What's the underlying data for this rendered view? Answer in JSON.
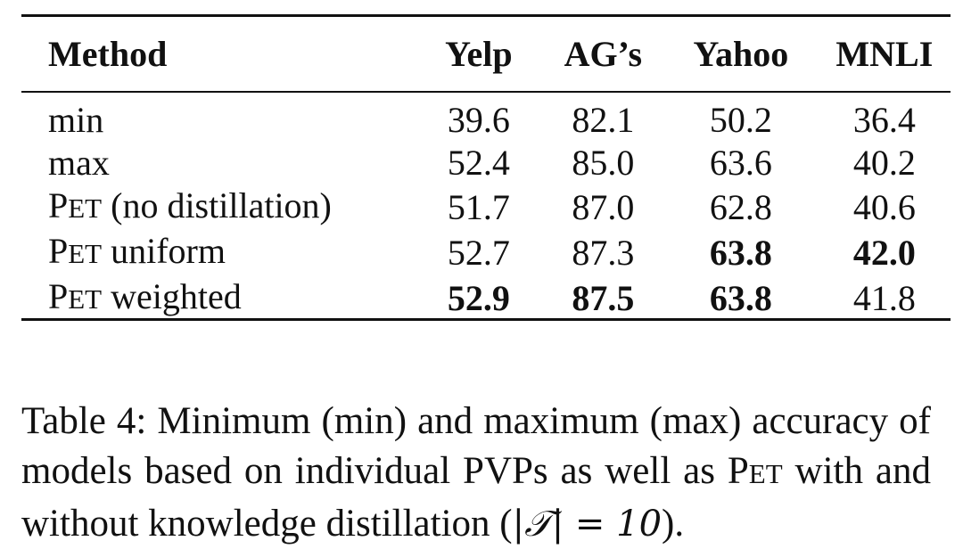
{
  "table": {
    "headers": [
      "Method",
      "Yelp",
      "AG’s",
      "Yahoo",
      "MNLI"
    ],
    "rows": [
      {
        "method": "min",
        "values": [
          "39.6",
          "82.1",
          "50.2",
          "36.4"
        ],
        "bold": [
          false,
          false,
          false,
          false
        ]
      },
      {
        "method": "max",
        "values": [
          "52.4",
          "85.0",
          "63.6",
          "40.2"
        ],
        "bold": [
          false,
          false,
          false,
          false
        ]
      },
      {
        "method_prefix": "P",
        "method_sc": "ET",
        "method_suffix": " (no distillation)",
        "values": [
          "51.7",
          "87.0",
          "62.8",
          "40.6"
        ],
        "bold": [
          false,
          false,
          false,
          false
        ]
      },
      {
        "method_prefix": "P",
        "method_sc": "ET",
        "method_suffix": " uniform",
        "values": [
          "52.7",
          "87.3",
          "63.8",
          "42.0"
        ],
        "bold": [
          false,
          false,
          true,
          true
        ]
      },
      {
        "method_prefix": "P",
        "method_sc": "ET",
        "method_suffix": " weighted",
        "values": [
          "52.9",
          "87.5",
          "63.8",
          "41.8"
        ],
        "bold": [
          true,
          true,
          true,
          false
        ]
      }
    ]
  },
  "caption": {
    "part1": "Table 4: Minimum (min) and maximum (max) accuracy of models based on individual PVPs as well as P",
    "pet_sc": "ET",
    "part2": " with and without knowledge distillation (",
    "math": "|𝒯| = 10",
    "part3": ")."
  }
}
